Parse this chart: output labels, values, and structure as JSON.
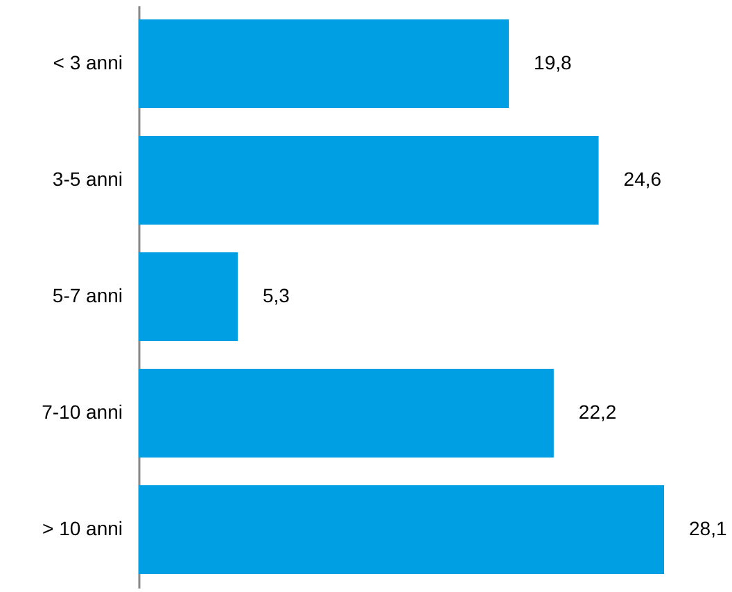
{
  "chart_data": {
    "type": "bar",
    "orientation": "horizontal",
    "categories": [
      "< 3 anni",
      "3-5 anni",
      "5-7 anni",
      "7-10 anni",
      "> 10 anni"
    ],
    "values": [
      19.8,
      24.6,
      5.3,
      22.2,
      28.1
    ],
    "value_labels": [
      "19,8",
      "24,6",
      "5,3",
      "22,2",
      "28,1"
    ],
    "color": "#009fe3"
  }
}
